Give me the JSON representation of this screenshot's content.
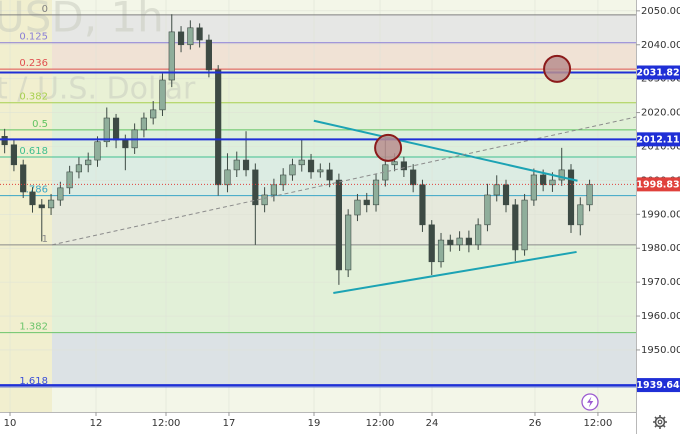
{
  "chart_data": {
    "type": "candlestick",
    "watermark": [
      "USD, 1h",
      "t / U.S. Dollar"
    ],
    "xlim": [
      -0.5,
      68
    ],
    "ylim": [
      1931.7,
      2053.2
    ],
    "xticks": [
      {
        "value": 0.58,
        "label": "10"
      },
      {
        "value": 9.84,
        "label": "12"
      },
      {
        "value": 17.38,
        "label": "12:00"
      },
      {
        "value": 24.16,
        "label": "17"
      },
      {
        "value": 33.32,
        "label": "19"
      },
      {
        "value": 40.43,
        "label": "12:00"
      },
      {
        "value": 46.03,
        "label": "24"
      },
      {
        "value": 57.12,
        "label": "26"
      },
      {
        "value": 63.9,
        "label": "12:00"
      }
    ],
    "yticks": [
      {
        "value": 1950,
        "label": "1950.00"
      },
      {
        "value": 1960,
        "label": "1960.00"
      },
      {
        "value": 1970,
        "label": "1970.00"
      },
      {
        "value": 1980,
        "label": "1980.00"
      },
      {
        "value": 1990,
        "label": "1990.00"
      },
      {
        "value": 2000,
        "label": "2000.00"
      },
      {
        "value": 2010,
        "label": "2010.00"
      },
      {
        "value": 2020,
        "label": "2020.00"
      },
      {
        "value": 2030,
        "label": "2030.00"
      },
      {
        "value": 2040,
        "label": "2040.00"
      },
      {
        "value": 2050,
        "label": "2050.00"
      }
    ],
    "grid": true,
    "up_color": "#8fae9b",
    "down_color": "#3d4a44",
    "open": [
      2013.0,
      2010.5,
      2004.6,
      1996.6,
      1992.8,
      1991.9,
      1994.2,
      1997.8,
      2002.5,
      2004.6,
      2006.0,
      2011.4,
      2018.4,
      2011.9,
      2009.6,
      2014.9,
      2018.4,
      2020.8,
      2029.6,
      2043.8,
      2040.0,
      2045.0,
      2041.4,
      2032.6,
      1998.7,
      2003.1,
      2006.0,
      2003.1,
      1992.8,
      1995.7,
      1998.7,
      2001.6,
      2004.6,
      2006.0,
      2002.5,
      2003.1,
      2000.1,
      1973.6,
      1989.8,
      1994.2,
      1992.8,
      2000.1,
      2004.6,
      2005.5,
      2003.1,
      1998.7,
      1986.9,
      1976.0,
      1982.4,
      1981.0,
      1983.0,
      1981.0,
      1986.9,
      1995.7,
      1998.7,
      1992.8,
      1979.5,
      1994.2,
      2001.6,
      1998.7,
      2000.1,
      2003.1,
      1986.9,
      1992.8
    ],
    "high": [
      2015.2,
      2012.0,
      2006.1,
      1998.0,
      1994.5,
      1996.0,
      1999.6,
      2004.3,
      2006.8,
      2008.2,
      2013.0,
      2021.5,
      2019.6,
      2013.5,
      2016.8,
      2020.0,
      2023.4,
      2031.5,
      2049.0,
      2045.5,
      2047.2,
      2046.3,
      2043.0,
      2034.0,
      2008.0,
      2008.5,
      2014.5,
      2005.0,
      1998.0,
      2000.5,
      2003.6,
      2006.4,
      2012.0,
      2007.8,
      2005.0,
      2005.2,
      2002.0,
      1991.5,
      1996.0,
      1996.3,
      2002.0,
      2013.0,
      2008.0,
      2007.0,
      2004.8,
      2000.2,
      1988.3,
      1984.5,
      1984.0,
      1985.0,
      1985.2,
      1988.8,
      1999.0,
      2001.5,
      2000.2,
      1994.5,
      1996.0,
      2003.5,
      2003.2,
      2002.4,
      2009.6,
      2004.8,
      1995.0,
      2000.2
    ],
    "low": [
      2008.0,
      2002.7,
      1994.8,
      1990.5,
      1982.0,
      1989.8,
      1992.5,
      1996.0,
      2000.6,
      2002.4,
      2004.0,
      2009.8,
      2009.5,
      2003.0,
      2007.8,
      2012.7,
      2016.5,
      2019.0,
      2027.5,
      2037.8,
      2038.6,
      2039.2,
      2030.4,
      1995.5,
      1996.5,
      2001.0,
      2001.2,
      1981.0,
      1990.6,
      1993.8,
      1996.9,
      1999.9,
      2002.6,
      2000.5,
      2000.8,
      1998.0,
      1969.2,
      1971.5,
      1988.0,
      1990.6,
      1990.8,
      1998.2,
      2002.7,
      2001.0,
      1996.5,
      1984.8,
      1972.1,
      1974.3,
      1979.0,
      1979.2,
      1978.8,
      1979.5,
      1985.0,
      1993.8,
      1990.6,
      1976.2,
      1977.8,
      1992.5,
      1996.8,
      1996.6,
      1998.4,
      1984.5,
      1983.8,
      1990.9
    ],
    "close": [
      2010.5,
      2004.6,
      1996.6,
      1992.8,
      1991.9,
      1994.2,
      1997.8,
      2002.5,
      2004.6,
      2006.0,
      2011.4,
      2018.4,
      2011.9,
      2009.6,
      2014.9,
      2018.4,
      2020.8,
      2029.6,
      2043.8,
      2040.0,
      2045.0,
      2041.4,
      2032.6,
      1998.7,
      2003.1,
      2006.0,
      2003.1,
      1992.8,
      1995.7,
      1998.7,
      2001.6,
      2004.6,
      2006.0,
      2002.5,
      2003.1,
      2000.1,
      1973.6,
      1989.8,
      1994.2,
      1992.8,
      2000.1,
      2004.6,
      2005.5,
      2003.1,
      1998.7,
      1986.9,
      1976.0,
      1982.4,
      1981.0,
      1983.0,
      1981.0,
      1986.9,
      1995.7,
      1998.7,
      1992.8,
      1979.5,
      1994.2,
      2001.6,
      1998.7,
      2000.1,
      2003.1,
      1986.9,
      1992.8,
      1998.83
    ],
    "fib_levels": [
      {
        "ratio": 0,
        "price": 2048.8,
        "color": "#808080"
      },
      {
        "ratio": 0.125,
        "price": 2040.6,
        "color": "#8a7fd6"
      },
      {
        "ratio": 0.236,
        "price": 2032.8,
        "color": "#e05050"
      },
      {
        "ratio": 0.382,
        "price": 2022.9,
        "color": "#a8d050"
      },
      {
        "ratio": 0.5,
        "price": 2014.9,
        "color": "#62c462"
      },
      {
        "ratio": 0.618,
        "price": 2006.9,
        "color": "#3fbf8f"
      },
      {
        "ratio": 0.786,
        "price": 1995.5,
        "color": "#3aa6c6"
      },
      {
        "ratio": 1,
        "price": 1981.0,
        "color": "#8a8a8a"
      },
      {
        "ratio": 1.382,
        "price": 1955.1,
        "color": "#6cc46c"
      },
      {
        "ratio": 1.618,
        "price": 1939.1,
        "color": "#3b4fd8"
      }
    ],
    "fib_start": 5.1,
    "price_lines": [
      {
        "value": 2031.82,
        "color": "#1f2fd6"
      },
      {
        "value": 2012.11,
        "color": "#1f2fd6"
      },
      {
        "value": 1939.64,
        "color": "#1f2fd6"
      }
    ],
    "last_price": {
      "value": 1998.83,
      "color": "#e0413c"
    },
    "trend_lines": [
      {
        "points": [
          [
            33.3,
            2017.6
          ],
          [
            61.7,
            1999.9
          ]
        ],
        "color": "#1ca3b4",
        "dashed": false
      },
      {
        "points": [
          [
            35.4,
            1966.8
          ],
          [
            61.6,
            1978.9
          ]
        ],
        "color": "#1ca3b4",
        "dashed": false
      },
      {
        "points": [
          [
            5.1,
            1981.0
          ],
          [
            68,
            2018.7
          ]
        ],
        "color": "#8c8c8c",
        "dashed": true
      }
    ],
    "markers": [
      {
        "x": 59.5,
        "y": 2032.9,
        "color": "#b98e8e"
      },
      {
        "x": 41.3,
        "y": 2009.6,
        "color": "#b98e8e"
      }
    ]
  }
}
